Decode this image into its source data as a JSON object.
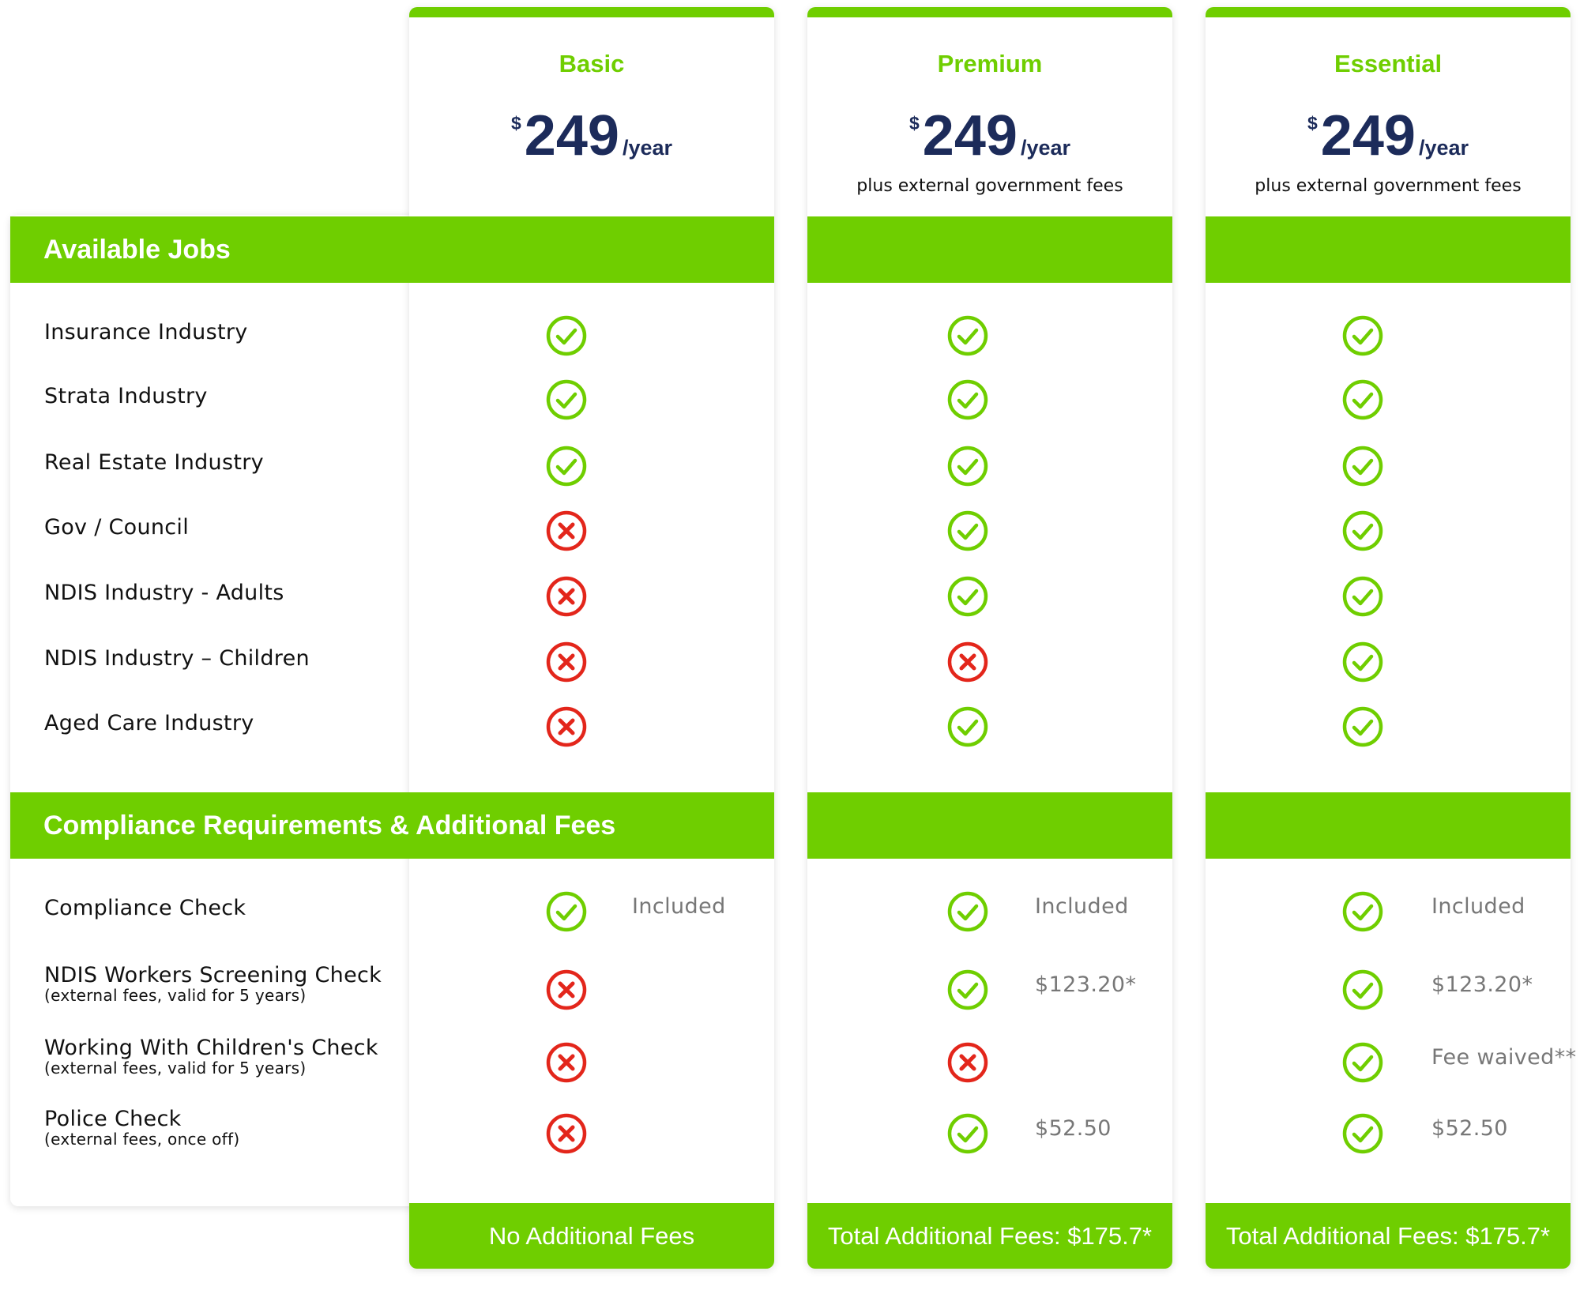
{
  "plans": [
    {
      "name": "Basic",
      "currency": "$",
      "amount": "249",
      "period": "/year",
      "note": "",
      "footer": "No Additional Fees"
    },
    {
      "name": "Premium",
      "currency": "$",
      "amount": "249",
      "period": "/year",
      "note": "plus external government fees",
      "footer": "Total Additional Fees: $175.7*"
    },
    {
      "name": "Essential",
      "currency": "$",
      "amount": "249",
      "period": "/year",
      "note": "plus external government fees",
      "footer": "Total Additional Fees: $175.7*"
    }
  ],
  "sections": {
    "available_jobs": "Available Jobs",
    "compliance": "Compliance Requirements & Additional Fees"
  },
  "jobs": [
    {
      "label": "Insurance Industry",
      "values": [
        "check",
        "check",
        "check"
      ]
    },
    {
      "label": "Strata Industry",
      "values": [
        "check",
        "check",
        "check"
      ]
    },
    {
      "label": "Real Estate Industry",
      "values": [
        "check",
        "check",
        "check"
      ]
    },
    {
      "label": "Gov / Council",
      "values": [
        "cross",
        "check",
        "check"
      ]
    },
    {
      "label": "NDIS Industry - Adults",
      "values": [
        "cross",
        "check",
        "check"
      ]
    },
    {
      "label": "NDIS Industry – Children",
      "values": [
        "cross",
        "cross",
        "check"
      ]
    },
    {
      "label": "Aged Care Industry",
      "values": [
        "cross",
        "check",
        "check"
      ]
    }
  ],
  "compliance_rows": [
    {
      "label": "Compliance Check",
      "sub": "",
      "values": [
        "check",
        "check",
        "check"
      ],
      "fees": [
        "Included",
        "Included",
        "Included"
      ]
    },
    {
      "label": "NDIS Workers Screening Check",
      "sub": "(external fees, valid for 5 years)",
      "values": [
        "cross",
        "check",
        "check"
      ],
      "fees": [
        "",
        "$123.20*",
        "$123.20*"
      ]
    },
    {
      "label": "Working With Children's Check",
      "sub": "(external fees, valid for 5 years)",
      "values": [
        "cross",
        "cross",
        "check"
      ],
      "fees": [
        "",
        "",
        "Fee waived**"
      ]
    },
    {
      "label": "Police Check",
      "sub": "(external fees, once off)",
      "values": [
        "cross",
        "check",
        "check"
      ],
      "fees": [
        "",
        "$52.50",
        "$52.50"
      ]
    }
  ],
  "colors": {
    "accent": "#6fce00",
    "price": "#1c2b5a",
    "check": "#6fce00",
    "cross": "#e3261b",
    "fee_text": "#777777"
  },
  "icons": {
    "check": "check-circle-icon",
    "cross": "cross-circle-icon"
  }
}
